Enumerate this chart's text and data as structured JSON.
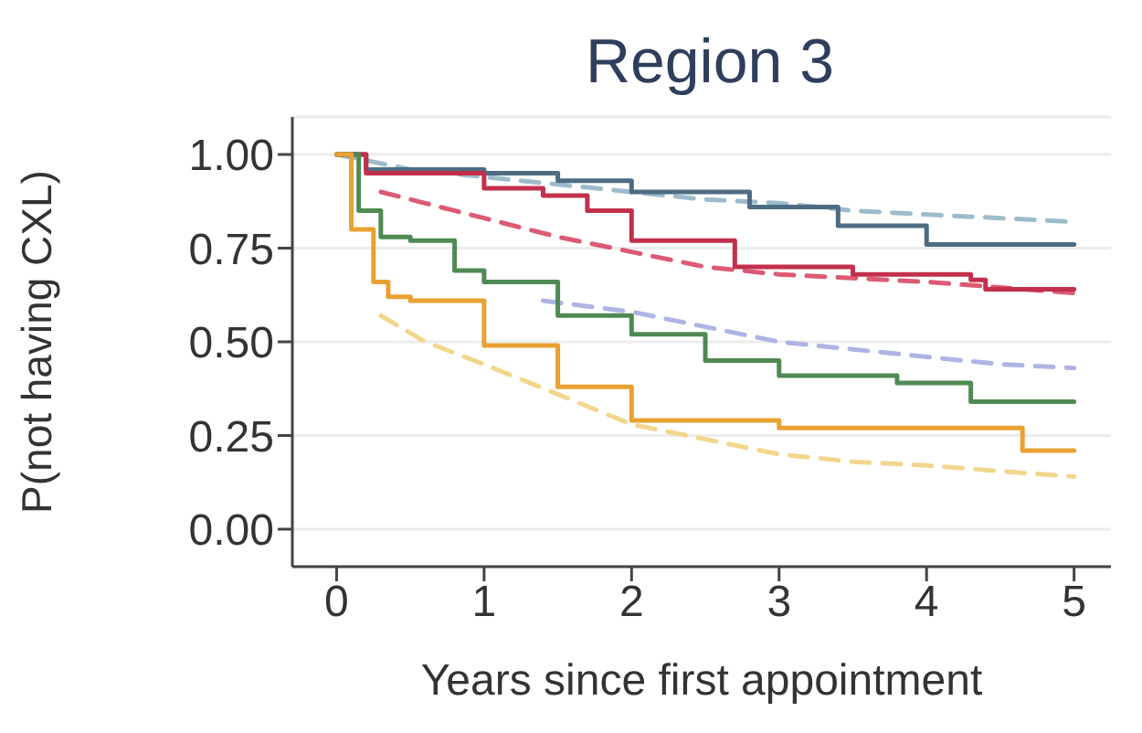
{
  "chart_data": {
    "type": "step",
    "title": "Region 3",
    "xlabel": "Years since first appointment",
    "ylabel": "P(not having CXL)",
    "xlim": [
      -0.3,
      5.25
    ],
    "xticks": [
      0,
      1,
      2,
      3,
      4,
      5
    ],
    "ylim": [
      -0.1,
      1.1
    ],
    "yticks": [
      {
        "value": 0,
        "label": "0.00"
      },
      {
        "value": 0.25,
        "label": "0.25"
      },
      {
        "value": 0.5,
        "label": "0.50"
      },
      {
        "value": 0.75,
        "label": "0.75"
      },
      {
        "value": 1,
        "label": "1.00"
      }
    ],
    "grid": "y",
    "marker": "none",
    "series": [
      {
        "type": "line",
        "line_style": "dashed",
        "color": "#9dbccb",
        "x": [
          0,
          0.5,
          1,
          1.5,
          2,
          2.5,
          3,
          3.5,
          4,
          4.5,
          5
        ],
        "values": [
          1,
          0.96,
          0.94,
          0.92,
          0.9,
          0.88,
          0.87,
          0.85,
          0.84,
          0.83,
          0.82
        ]
      },
      {
        "type": "line",
        "line_style": "dashed",
        "color": "#dc5a74",
        "x": [
          0.3,
          0.6,
          1,
          1.5,
          2,
          2.5,
          3,
          3.5,
          4,
          4.5,
          5
        ],
        "values": [
          0.9,
          0.87,
          0.83,
          0.78,
          0.74,
          0.7,
          0.68,
          0.67,
          0.66,
          0.645,
          0.63
        ]
      },
      {
        "type": "line",
        "line_style": "dashed",
        "color": "#aeb4e4",
        "x": [
          1.4,
          2,
          2.5,
          3,
          3.5,
          4,
          4.5,
          5
        ],
        "values": [
          0.61,
          0.58,
          0.54,
          0.5,
          0.48,
          0.46,
          0.44,
          0.43
        ]
      },
      {
        "type": "line",
        "line_style": "dashed",
        "color": "#f2d68c",
        "x": [
          0.3,
          0.6,
          1,
          1.5,
          2,
          2.5,
          3,
          3.5,
          4,
          4.5,
          5
        ],
        "values": [
          0.57,
          0.5,
          0.44,
          0.36,
          0.28,
          0.24,
          0.2,
          0.18,
          0.17,
          0.155,
          0.14
        ]
      },
      {
        "color": "#4d6c84",
        "x": [
          0,
          0.2,
          1,
          1.5,
          2,
          2.8,
          3.4,
          4,
          5
        ],
        "values": [
          1,
          0.96,
          0.95,
          0.93,
          0.9,
          0.86,
          0.81,
          0.76,
          0.76
        ]
      },
      {
        "color": "#c2304c",
        "x": [
          0,
          0.2,
          1,
          1.4,
          1.7,
          2,
          2.7,
          3.5,
          4.3,
          4.4,
          5
        ],
        "values": [
          1,
          0.95,
          0.91,
          0.89,
          0.85,
          0.77,
          0.7,
          0.68,
          0.665,
          0.64,
          0.64
        ]
      },
      {
        "color": "#4f8a52",
        "x": [
          0,
          0.15,
          0.3,
          0.5,
          0.8,
          1,
          1.5,
          2,
          2.5,
          3,
          3.8,
          4.3,
          5
        ],
        "values": [
          1,
          0.85,
          0.78,
          0.77,
          0.69,
          0.66,
          0.57,
          0.52,
          0.45,
          0.41,
          0.39,
          0.34,
          0.34
        ]
      },
      {
        "color": "#e9a131",
        "x": [
          0,
          0.1,
          0.25,
          0.35,
          0.5,
          1,
          1.5,
          2,
          3,
          4.65,
          5
        ],
        "values": [
          1,
          0.8,
          0.66,
          0.62,
          0.61,
          0.49,
          0.38,
          0.29,
          0.27,
          0.21,
          0.21
        ]
      }
    ]
  }
}
